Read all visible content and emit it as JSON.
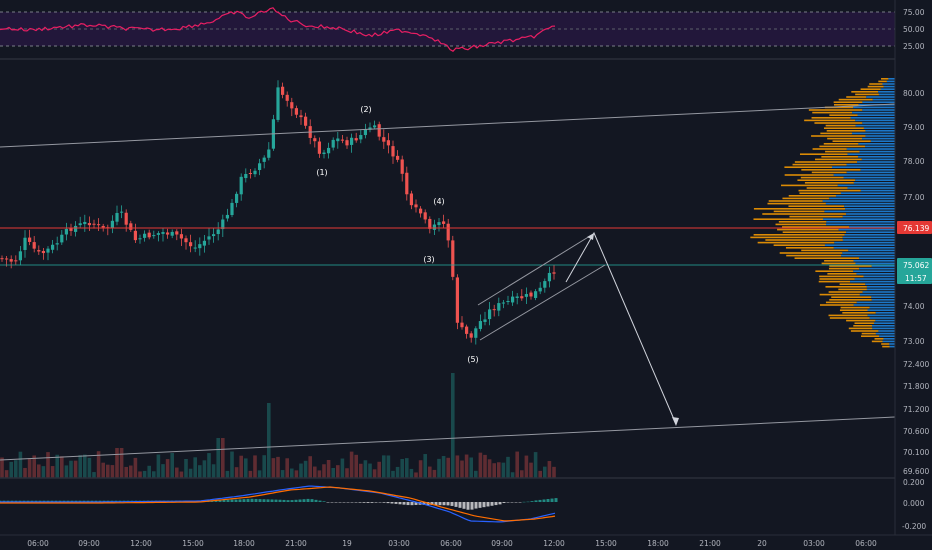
{
  "rsi_panel": {
    "ticks": [
      "75.00",
      "50.00",
      "25.00"
    ],
    "levels": [
      75,
      50,
      25
    ]
  },
  "price_axis": {
    "ticks": [
      "80.00",
      "79.00",
      "78.00",
      "77.00",
      "74.00",
      "73.00",
      "72.400",
      "71.800",
      "71.200",
      "70.600",
      "70.100",
      "69.600"
    ]
  },
  "price_labels": {
    "resistance": "76.139",
    "current": "75.062",
    "countdown": "11:57"
  },
  "macd_panel": {
    "ticks": [
      "0.200",
      "0.000",
      "-0.200"
    ]
  },
  "time_axis": {
    "ticks": [
      "06:00",
      "09:00",
      "12:00",
      "15:00",
      "18:00",
      "21:00",
      "19",
      "03:00",
      "06:00",
      "09:00",
      "12:00",
      "15:00",
      "18:00",
      "21:00",
      "20",
      "03:00",
      "06:00"
    ]
  },
  "wave_labels": [
    "(1)",
    "(2)",
    "(3)",
    "(4)",
    "(5)"
  ],
  "colors": {
    "background": "#131722",
    "up": "#26a69a",
    "down": "#ef5350",
    "rsi_line": "#e91e63",
    "rsi_fill": "#2a1b47",
    "macd_line": "#2962ff",
    "signal_line": "#ff6d00",
    "resistance": "#e53935",
    "current_price": "#26a69a",
    "volume_profile_up": "#1e88e5",
    "volume_profile_down": "#ffa000",
    "grid": "#1e2230",
    "text": "#b2b5be"
  }
}
